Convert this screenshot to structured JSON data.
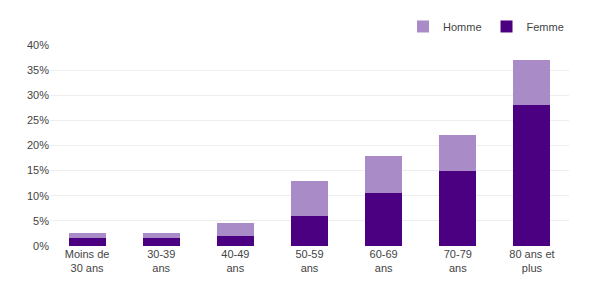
{
  "chart_data": {
    "type": "bar",
    "stacked": true,
    "categories": [
      "Moins de\n30 ans",
      "30-39\nans",
      "40-49\nans",
      "50-59\nans",
      "60-69\nans",
      "70-79\nans",
      "80 ans et\nplus"
    ],
    "series": [
      {
        "name": "Femme",
        "color": "#4B0082",
        "values": [
          1.5,
          1.5,
          2.0,
          6.0,
          10.5,
          15.0,
          28.0
        ]
      },
      {
        "name": "Homme",
        "color": "#A98BC8",
        "values": [
          1.0,
          1.0,
          2.5,
          7.0,
          7.5,
          7.0,
          9.0
        ]
      }
    ],
    "ylim": [
      0,
      40
    ],
    "yticks": [
      {
        "value": 0,
        "label": "0%"
      },
      {
        "value": 5,
        "label": "5%"
      },
      {
        "value": 10,
        "label": "10%"
      },
      {
        "value": 15,
        "label": "15%"
      },
      {
        "value": 20,
        "label": "20%"
      },
      {
        "value": 25,
        "label": "25%"
      },
      {
        "value": 30,
        "label": "30%"
      },
      {
        "value": 35,
        "label": "35%"
      },
      {
        "value": 40,
        "label": "40%"
      }
    ],
    "grid": true,
    "legend": "upper right"
  }
}
